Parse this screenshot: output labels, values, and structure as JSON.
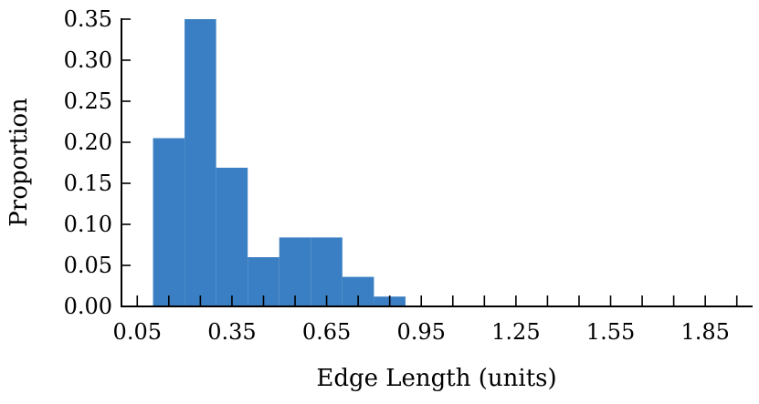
{
  "chart_data": {
    "type": "bar",
    "title": "",
    "xlabel": "Edge Length (units)",
    "ylabel": "Proportion",
    "bin_width": 0.1,
    "bins": [
      {
        "start": 0.1,
        "end": 0.2,
        "value": 0.205
      },
      {
        "start": 0.2,
        "end": 0.3,
        "value": 0.35
      },
      {
        "start": 0.3,
        "end": 0.4,
        "value": 0.169
      },
      {
        "start": 0.4,
        "end": 0.5,
        "value": 0.06
      },
      {
        "start": 0.5,
        "end": 0.6,
        "value": 0.084
      },
      {
        "start": 0.6,
        "end": 0.7,
        "value": 0.084
      },
      {
        "start": 0.7,
        "end": 0.8,
        "value": 0.036
      },
      {
        "start": 0.8,
        "end": 0.9,
        "value": 0.012
      }
    ],
    "xlim": [
      0.0,
      2.0
    ],
    "ylim": [
      0.0,
      0.35
    ],
    "x_ticks": [
      0.05,
      0.35,
      0.65,
      0.95,
      1.25,
      1.55,
      1.85
    ],
    "x_tick_labels": [
      "0.05",
      "0.35",
      "0.65",
      "0.95",
      "1.25",
      "1.55",
      "1.85"
    ],
    "x_minor_ticks": [
      0.05,
      0.15,
      0.25,
      0.35,
      0.45,
      0.55,
      0.65,
      0.75,
      0.85,
      0.95,
      1.05,
      1.15,
      1.25,
      1.35,
      1.45,
      1.55,
      1.65,
      1.75,
      1.85,
      1.95
    ],
    "y_ticks": [
      0.0,
      0.05,
      0.1,
      0.15,
      0.2,
      0.25,
      0.3,
      0.35
    ],
    "y_tick_labels": [
      "0.00",
      "0.05",
      "0.10",
      "0.15",
      "0.20",
      "0.25",
      "0.30",
      "0.35"
    ],
    "grid": false,
    "bar_color": "#3a7fc3",
    "axis_color": "#000000"
  }
}
